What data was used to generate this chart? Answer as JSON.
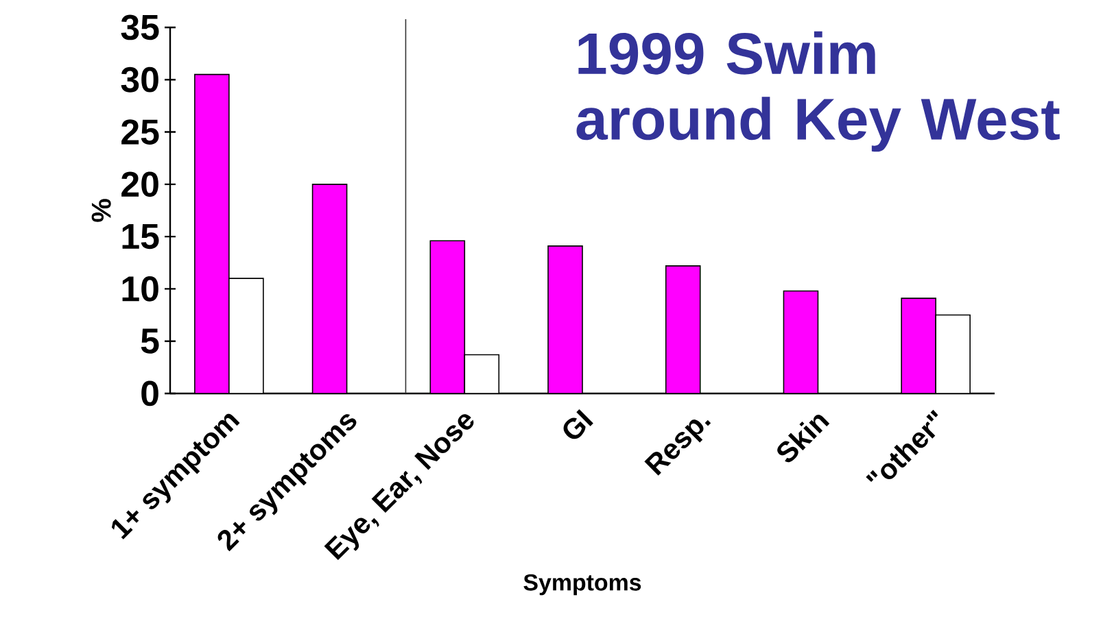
{
  "chart_data": {
    "type": "bar",
    "title": "1999 Swim around Key West",
    "xlabel": "Symptoms",
    "ylabel": "%",
    "categories": [
      "1+ symptom",
      "2+ symptoms",
      "Eye, Ear, Nose",
      "GI",
      "Resp.",
      "Skin",
      "\"other\""
    ],
    "series": [
      {
        "color": "#ff00ff",
        "values": [
          30.5,
          20,
          14.6,
          14.1,
          12.2,
          9.8,
          9.1
        ]
      },
      {
        "color": "#ffffff",
        "values": [
          11,
          null,
          3.7,
          null,
          null,
          null,
          7.5
        ]
      }
    ],
    "ylim": [
      0,
      35
    ],
    "yticks": [
      0,
      5,
      10,
      15,
      20,
      25,
      30,
      35
    ],
    "grid": false
  }
}
